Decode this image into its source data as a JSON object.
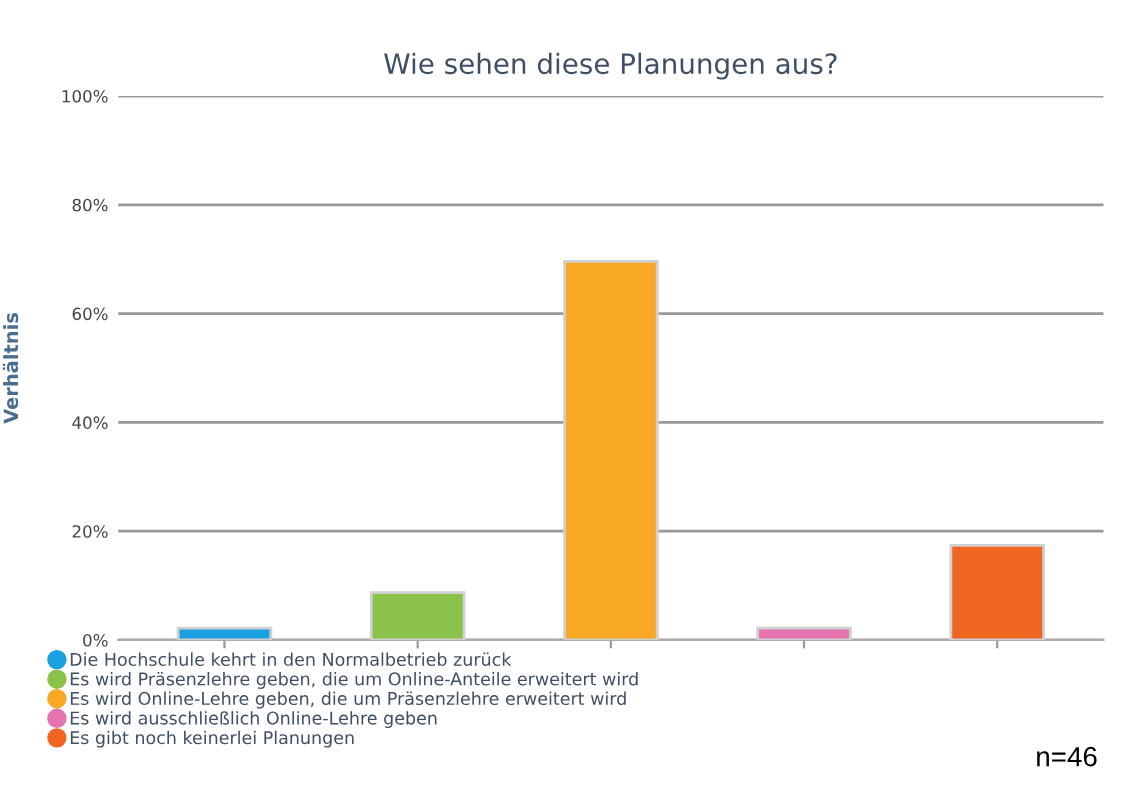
{
  "chart_data": {
    "type": "bar",
    "title": "Wie sehen diese Planungen aus?",
    "ylabel": "Verhältnis",
    "categories": [
      null,
      null,
      null,
      null,
      null
    ],
    "series": [
      {
        "name": "Die Hochschule kehrt in den Normalbetrieb zurück",
        "color": "#1ba1e2",
        "values": [
          2.2,
          null,
          null,
          null,
          null
        ]
      },
      {
        "name": "Es wird Präsenzlehre geben, die um Online-Anteile erweitert wird",
        "color": "#8bc34a",
        "values": [
          null,
          8.7,
          null,
          null,
          null
        ]
      },
      {
        "name": "Es wird Online-Lehre geben, die um Präsenzlehre erweitert wird",
        "color": "#f9a825",
        "values": [
          null,
          null,
          69.6,
          null,
          null
        ]
      },
      {
        "name": "Es wird ausschließlich Online-Lehre geben",
        "color": "#e573b0",
        "values": [
          null,
          null,
          null,
          2.2,
          null
        ]
      },
      {
        "name": "Es gibt noch keinerlei Planungen",
        "color": "#f06522",
        "values": [
          null,
          null,
          null,
          null,
          17.4
        ]
      }
    ],
    "ylim": [
      0,
      100
    ],
    "yticks": [
      {
        "value": 0,
        "label": "0%"
      },
      {
        "value": 20,
        "label": "20%"
      },
      {
        "value": 40,
        "label": "40%"
      },
      {
        "value": 60,
        "label": "60%"
      },
      {
        "value": 80,
        "label": "80%"
      },
      {
        "value": 100,
        "label": "100%"
      }
    ],
    "grid": "y",
    "legend": "bottom left",
    "annotations": [
      "n=46"
    ]
  }
}
